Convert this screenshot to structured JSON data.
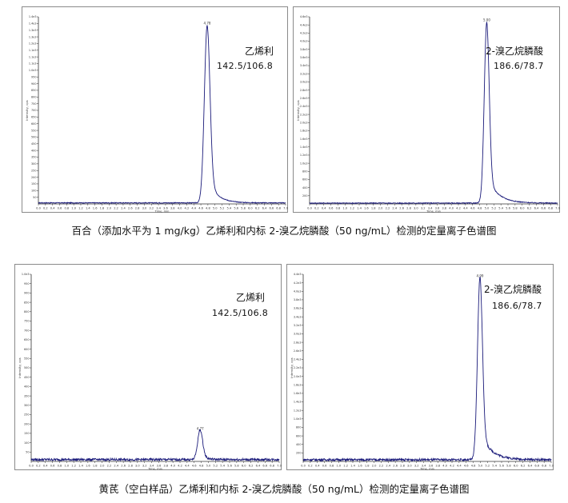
{
  "chart_data": [
    {
      "type": "line",
      "compound": "乙烯利",
      "transition": "142.5/106.8",
      "peak_label": "4.78",
      "xlabel": "Time, min",
      "ylabel": "Intensity, cps",
      "xlim": [
        0.0,
        7.0
      ],
      "ylim": [
        0,
        1400
      ],
      "x_ticks": [
        0.0,
        0.2,
        0.4,
        0.6,
        0.8,
        1.0,
        1.2,
        1.4,
        1.6,
        1.8,
        2.0,
        2.2,
        2.4,
        2.6,
        2.8,
        3.0,
        3.2,
        3.4,
        3.6,
        3.8,
        4.0,
        4.2,
        4.4,
        4.6,
        4.8,
        5.0,
        5.2,
        5.4,
        5.6,
        5.8,
        6.0,
        6.2,
        6.4,
        6.6,
        6.8,
        7.0
      ],
      "peak": {
        "rt": 4.78,
        "height": 1330,
        "width": 0.08,
        "tail": 0.25
      },
      "baseline": 8,
      "noise": 3
    },
    {
      "type": "line",
      "compound": "2-溴乙烷膦酸",
      "transition": "186.6/78.7",
      "peak_label": "5.00",
      "xlabel": "Time, min",
      "ylabel": "Intensity, cps",
      "xlim": [
        0.0,
        7.0
      ],
      "ylim": [
        0,
        4600
      ],
      "x_ticks": [
        0.0,
        0.2,
        0.4,
        0.6,
        0.8,
        1.0,
        1.2,
        1.4,
        1.6,
        1.8,
        2.0,
        2.2,
        2.4,
        2.6,
        2.8,
        3.0,
        3.2,
        3.4,
        3.6,
        3.8,
        4.0,
        4.2,
        4.4,
        4.6,
        4.8,
        5.0,
        5.2,
        5.4,
        5.6,
        5.8,
        6.0,
        6.2,
        6.4,
        6.6,
        6.8,
        7.0
      ],
      "peak": {
        "rt": 5.0,
        "height": 4450,
        "width": 0.07,
        "tail": 0.3
      },
      "baseline": 20,
      "noise": 10
    },
    {
      "type": "line",
      "compound": "乙烯利",
      "transition": "142.5/106.8",
      "peak_label": "4.77",
      "xlabel": "Time, min",
      "ylabel": "Intensity, cps",
      "xlim": [
        0.0,
        7.0
      ],
      "ylim": [
        0,
        1000
      ],
      "x_ticks": [
        0.0,
        0.2,
        0.4,
        0.6,
        0.8,
        1.0,
        1.2,
        1.4,
        1.6,
        1.8,
        2.0,
        2.2,
        2.4,
        2.6,
        2.8,
        3.0,
        3.2,
        3.4,
        3.6,
        3.8,
        4.0,
        4.2,
        4.4,
        4.6,
        4.8,
        5.0,
        5.2,
        5.4,
        5.6,
        5.8,
        6.0,
        6.2,
        6.4,
        6.6,
        6.8,
        7.0
      ],
      "peak": {
        "rt": 4.77,
        "height": 160,
        "width": 0.07,
        "tail": 0.15
      },
      "baseline": 10,
      "noise": 6
    },
    {
      "type": "line",
      "compound": "2-溴乙烷膦酸",
      "transition": "186.6/78.7",
      "peak_label": "4.99",
      "xlabel": "Time, min",
      "ylabel": "Intensity, cps",
      "xlim": [
        0.0,
        7.0
      ],
      "ylim": [
        0,
        4400
      ],
      "x_ticks": [
        0.0,
        0.2,
        0.4,
        0.6,
        0.8,
        1.0,
        1.2,
        1.4,
        1.6,
        1.8,
        2.0,
        2.2,
        2.4,
        2.6,
        2.8,
        3.0,
        3.2,
        3.4,
        3.6,
        3.8,
        4.0,
        4.2,
        4.4,
        4.6,
        4.8,
        5.0,
        5.2,
        5.4,
        5.6,
        5.8,
        6.0,
        6.2,
        6.4,
        6.6,
        6.8,
        7.0
      ],
      "peak": {
        "rt": 4.99,
        "height": 4300,
        "width": 0.07,
        "tail": 0.3
      },
      "baseline": 40,
      "noise": 25
    }
  ],
  "captions": {
    "top": "百合（添加水平为 1 mg/kg）乙烯利和内标 2-溴乙烷膦酸（50 ng/mL）检测的定量离子色谱图",
    "bottom": "黄芪（空白样品）乙烯利和内标 2-溴乙烷膦酸（50 ng/mL）检测的定量离子色谱图"
  },
  "colors": {
    "trace": "#1a1a7a",
    "axis": "#333333"
  }
}
